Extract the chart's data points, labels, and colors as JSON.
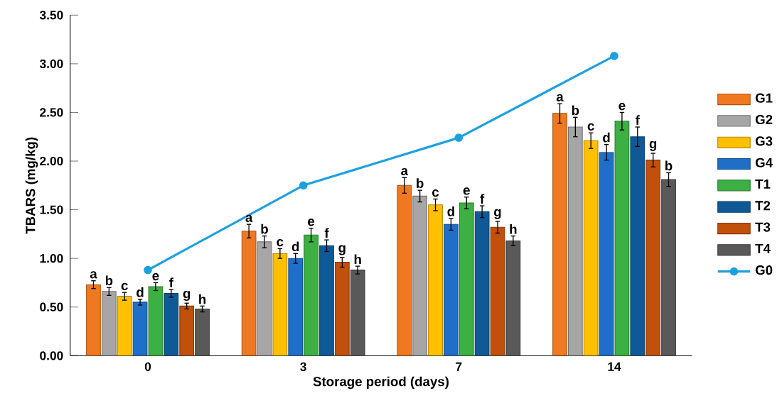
{
  "chart_data": {
    "type": "bar",
    "xlabel": "Storage period (days)",
    "ylabel": "TBARS  (mg/kg)",
    "categories": [
      "0",
      "3",
      "7",
      "14"
    ],
    "ylim": [
      0,
      3.5
    ],
    "yticks": [
      {
        "value": 0,
        "label": "0.00"
      },
      {
        "value": 0.5,
        "label": "0.50"
      },
      {
        "value": 1,
        "label": "1.00"
      },
      {
        "value": 1.5,
        "label": "1.50"
      },
      {
        "value": 2,
        "label": "2.00"
      },
      {
        "value": 2.5,
        "label": "2.50"
      },
      {
        "value": 3,
        "label": "3.00"
      },
      {
        "value": 3.5,
        "label": "3.50"
      }
    ],
    "legend": "right",
    "series": [
      {
        "name": "G1",
        "color": "#f07820",
        "values": [
          0.73,
          1.28,
          1.75,
          2.49
        ],
        "errors": [
          0.04,
          0.07,
          0.08,
          0.1
        ],
        "value_labels": [
          "a",
          "a",
          "a",
          "a"
        ]
      },
      {
        "name": "G2",
        "color": "#a6a6a6",
        "values": [
          0.66,
          1.17,
          1.64,
          2.35
        ],
        "errors": [
          0.04,
          0.06,
          0.06,
          0.1
        ],
        "value_labels": [
          "b",
          "b",
          "b",
          "b"
        ]
      },
      {
        "name": "G3",
        "color": "#ffc000",
        "values": [
          0.61,
          1.05,
          1.55,
          2.21
        ],
        "errors": [
          0.04,
          0.05,
          0.06,
          0.08
        ],
        "value_labels": [
          "c",
          "c",
          "c",
          "c"
        ]
      },
      {
        "name": "G4",
        "color": "#1f6fc8",
        "values": [
          0.55,
          1.0,
          1.35,
          2.09
        ],
        "errors": [
          0.03,
          0.05,
          0.06,
          0.08
        ],
        "value_labels": [
          "d",
          "d",
          "d",
          "d"
        ]
      },
      {
        "name": "T1",
        "color": "#3cb043",
        "values": [
          0.71,
          1.24,
          1.57,
          2.41
        ],
        "errors": [
          0.04,
          0.07,
          0.06,
          0.09
        ],
        "value_labels": [
          "e",
          "e",
          "e",
          "e"
        ]
      },
      {
        "name": "T2",
        "color": "#0f5a96",
        "values": [
          0.64,
          1.13,
          1.48,
          2.25
        ],
        "errors": [
          0.04,
          0.06,
          0.06,
          0.1
        ],
        "value_labels": [
          "f",
          "f",
          "f",
          "f"
        ]
      },
      {
        "name": "T3",
        "color": "#c0500a",
        "values": [
          0.51,
          0.96,
          1.32,
          2.01
        ],
        "errors": [
          0.03,
          0.05,
          0.06,
          0.07
        ],
        "value_labels": [
          "g",
          "g",
          "g",
          "g"
        ]
      },
      {
        "name": "T4",
        "color": "#595959",
        "values": [
          0.48,
          0.88,
          1.18,
          1.81
        ],
        "errors": [
          0.03,
          0.04,
          0.05,
          0.07
        ],
        "value_labels": [
          "h",
          "h",
          "h",
          "b"
        ]
      },
      {
        "name": "G0",
        "type": "line",
        "color": "#1ea0e0",
        "marker": "circle",
        "line_style": "solid",
        "values": [
          0.88,
          1.75,
          2.24,
          3.08
        ]
      }
    ]
  }
}
